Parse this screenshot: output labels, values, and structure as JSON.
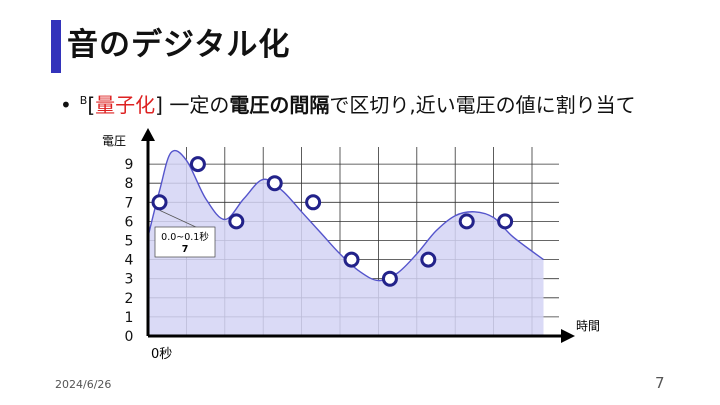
{
  "slide": {
    "title": "音のデジタル化",
    "bullet": {
      "marker": "•",
      "ref": "B",
      "bracket_open": "[",
      "highlight": "量子化",
      "bracket_close": "]",
      "text1": " 一定の",
      "bold1": "電圧の間隔",
      "text2": "で区切り,近い電圧の値に割り当て"
    },
    "footer_date": "2024/6/26",
    "page_number": "7"
  },
  "colors": {
    "accent": "#3333bb",
    "highlight": "#dd2222",
    "fill": "#d4d4f4",
    "curve": "#5555cc",
    "point_stroke": "#22228a"
  },
  "chart_data": {
    "type": "area",
    "ylabel": "電圧",
    "xlabel": "時間",
    "x_origin_label": "0秒",
    "y_ticks": [
      0,
      1,
      2,
      3,
      4,
      5,
      6,
      7,
      8,
      9
    ],
    "ylim": [
      0,
      10
    ],
    "grid": true,
    "samples": [
      7,
      9,
      6,
      8,
      7,
      4,
      3,
      4,
      6,
      6
    ],
    "curve_points": [
      [
        0,
        5.2
      ],
      [
        0.3,
        7.6
      ],
      [
        0.6,
        9.6
      ],
      [
        1,
        9.2
      ],
      [
        1.5,
        7.2
      ],
      [
        2,
        6.1
      ],
      [
        2.5,
        7.2
      ],
      [
        3,
        8.2
      ],
      [
        3.5,
        7.6
      ],
      [
        4,
        6.5
      ],
      [
        4.5,
        5.4
      ],
      [
        5,
        4.3
      ],
      [
        5.5,
        3.4
      ],
      [
        6,
        2.9
      ],
      [
        6.5,
        3.3
      ],
      [
        7,
        4.3
      ],
      [
        7.5,
        5.5
      ],
      [
        8,
        6.3
      ],
      [
        8.5,
        6.5
      ],
      [
        9,
        6.2
      ],
      [
        9.5,
        5.2
      ],
      [
        10.3,
        4.0
      ]
    ],
    "tooltip": {
      "label": "0.0~0.1秒",
      "value": "7"
    }
  }
}
